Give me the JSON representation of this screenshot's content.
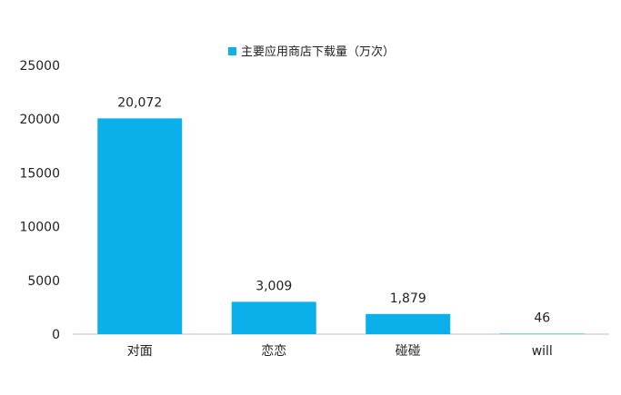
{
  "chart_data": {
    "type": "bar",
    "title": "",
    "xlabel": "",
    "ylabel": "",
    "categories": [
      "对面",
      "恋恋",
      "碰碰",
      "will"
    ],
    "series": [
      {
        "name": "主要应用商店下载量（万次）",
        "values": [
          20072,
          3009,
          1879,
          46
        ],
        "labels": [
          "20,072",
          "3,009",
          "1,879",
          "46"
        ],
        "color": "#0BB0EA"
      }
    ],
    "ylim": [
      0,
      25000
    ],
    "yticks": [
      0,
      5000,
      10000,
      15000,
      20000,
      25000
    ],
    "ytick_labels": [
      "0",
      "5000",
      "10000",
      "15000",
      "20000",
      "25000"
    ],
    "grid": false,
    "legend_position": "top"
  }
}
